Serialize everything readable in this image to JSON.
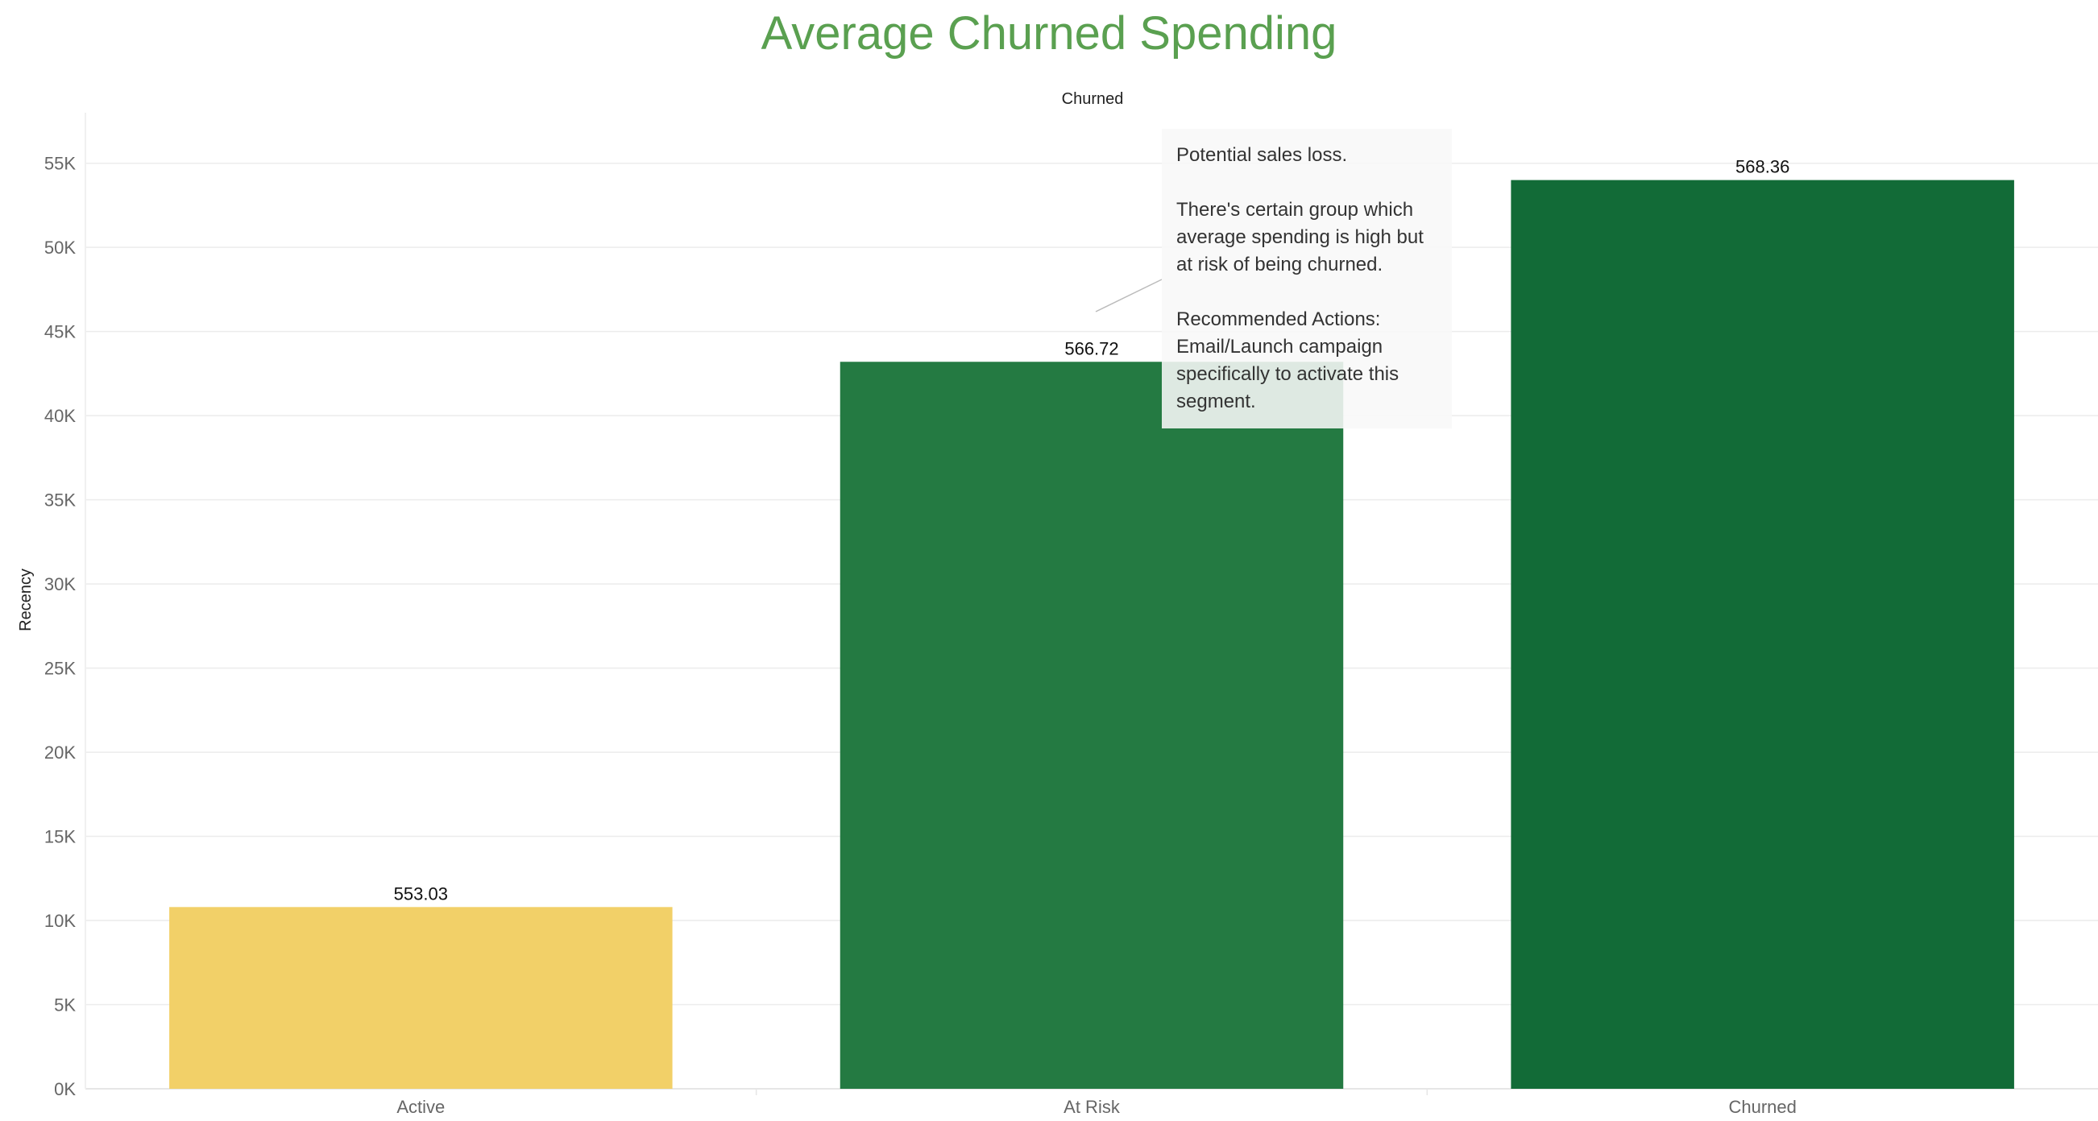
{
  "chart_data": {
    "type": "bar",
    "title": "Average Churned Spending",
    "legend_label": "Churned",
    "ylabel": "Recency",
    "xlabel": "",
    "categories": [
      "Active",
      "At Risk",
      "Churned"
    ],
    "values": [
      10800,
      43200,
      54000
    ],
    "data_labels": [
      "553.03",
      "566.72",
      "568.36"
    ],
    "colors": [
      "#f2d068",
      "#247a42",
      "#126b37"
    ],
    "ylim": [
      0,
      58000
    ],
    "y_ticks": [
      0,
      5000,
      10000,
      15000,
      20000,
      25000,
      30000,
      35000,
      40000,
      45000,
      50000,
      55000
    ],
    "y_tick_labels": [
      "0K",
      "5K",
      "10K",
      "15K",
      "20K",
      "25K",
      "30K",
      "35K",
      "40K",
      "45K",
      "50K",
      "55K"
    ],
    "grid": true,
    "annotation": {
      "title": "Potential sales loss.",
      "body": "There's certain group which average spending is high but at risk of being churned.",
      "actions_label": "Recommended Actions:",
      "actions": "Email/Launch campaign specifically to activate this segment."
    }
  }
}
